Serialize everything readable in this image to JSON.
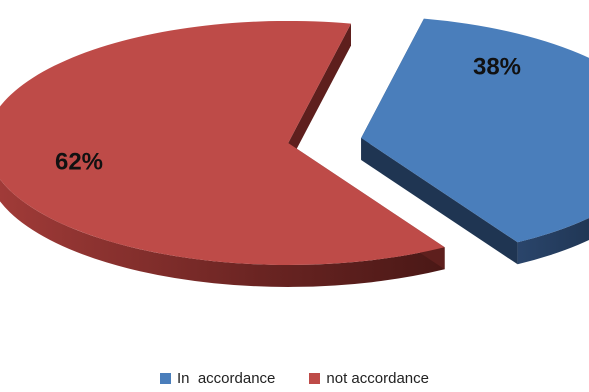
{
  "chart_data": {
    "type": "pie",
    "style": "3d-exploded",
    "slices": [
      {
        "name": "In  accordance",
        "value": 38,
        "label": "38%",
        "color": "#4a7ebb",
        "side_color": "#1f3552"
      },
      {
        "name": "not accordance",
        "value": 62,
        "label": "62%",
        "color": "#be4b48",
        "side_color": "#5e1f1d"
      }
    ],
    "legend_position": "bottom"
  }
}
